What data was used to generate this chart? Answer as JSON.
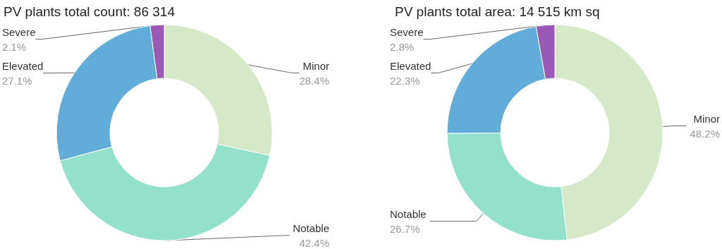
{
  "chart_data": [
    {
      "type": "donut",
      "title": "PV plants total count: 86 314",
      "categories": [
        "Minor",
        "Notable",
        "Elevated",
        "Severe"
      ],
      "values": [
        28.4,
        42.4,
        27.1,
        2.1
      ],
      "value_labels": [
        "28.4%",
        "42.4%",
        "27.1%",
        "2.1%"
      ],
      "colors": [
        "#d5e8c8",
        "#93e0cb",
        "#62acd9",
        "#9b59b6"
      ],
      "legend": false
    },
    {
      "type": "donut",
      "title": "PV plants total area: 14 515 km sq",
      "categories": [
        "Minor",
        "Notable",
        "Elevated",
        "Severe"
      ],
      "values": [
        48.2,
        26.7,
        22.3,
        2.8
      ],
      "value_labels": [
        "48.2%",
        "26.7%",
        "22.3%",
        "2.8%"
      ],
      "colors": [
        "#d5e8c8",
        "#93e0cb",
        "#62acd9",
        "#9b59b6"
      ],
      "legend": false
    }
  ]
}
